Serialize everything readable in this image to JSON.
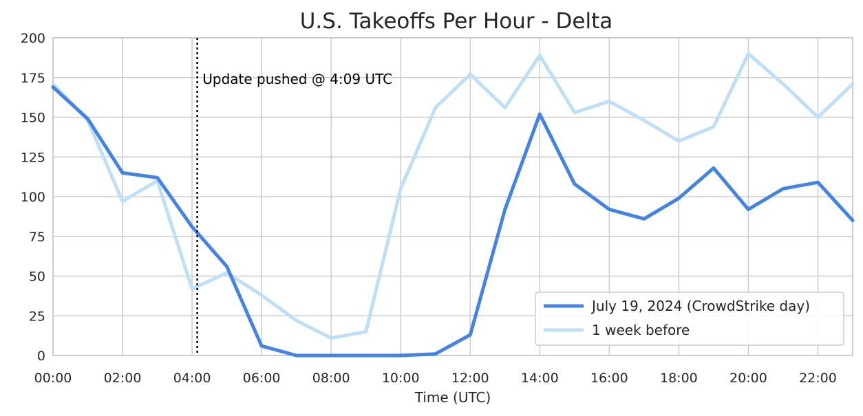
{
  "chart_data": {
    "type": "line",
    "title": "U.S. Takeoffs Per Hour - Delta",
    "xlabel": "Time (UTC)",
    "ylabel": "",
    "x": [
      0,
      1,
      2,
      3,
      4,
      5,
      6,
      7,
      8,
      9,
      10,
      11,
      12,
      13,
      14,
      15,
      16,
      17,
      18,
      19,
      20,
      21,
      22,
      23
    ],
    "xlim": [
      0,
      23
    ],
    "ylim": [
      0,
      200
    ],
    "x_ticks": [
      {
        "value": 0,
        "label": "00:00"
      },
      {
        "value": 2,
        "label": "02:00"
      },
      {
        "value": 4,
        "label": "04:00"
      },
      {
        "value": 6,
        "label": "06:00"
      },
      {
        "value": 8,
        "label": "08:00"
      },
      {
        "value": 10,
        "label": "10:00"
      },
      {
        "value": 12,
        "label": "12:00"
      },
      {
        "value": 14,
        "label": "14:00"
      },
      {
        "value": 16,
        "label": "16:00"
      },
      {
        "value": 18,
        "label": "18:00"
      },
      {
        "value": 20,
        "label": "20:00"
      },
      {
        "value": 22,
        "label": "22:00"
      }
    ],
    "y_ticks": [
      {
        "value": 0,
        "label": "0"
      },
      {
        "value": 25,
        "label": "25"
      },
      {
        "value": 50,
        "label": "50"
      },
      {
        "value": 75,
        "label": "75"
      },
      {
        "value": 100,
        "label": "100"
      },
      {
        "value": 125,
        "label": "125"
      },
      {
        "value": 150,
        "label": "150"
      },
      {
        "value": 175,
        "label": "175"
      },
      {
        "value": 200,
        "label": "200"
      }
    ],
    "grid": true,
    "legend_position": "bottom-right",
    "series": [
      {
        "name": "1 week before",
        "color": "#bfdff7",
        "values": [
          171,
          148,
          97,
          110,
          42,
          52,
          38,
          22,
          11,
          15,
          105,
          156,
          177,
          156,
          189,
          153,
          160,
          148,
          135,
          144,
          190,
          171,
          150,
          171
        ]
      },
      {
        "name": "July 19, 2024 (CrowdStrike day)",
        "color": "#4483e6",
        "values": [
          169,
          149,
          115,
          112,
          81,
          56,
          6,
          0,
          0,
          0,
          0,
          1,
          13,
          92,
          152,
          108,
          92,
          86,
          99,
          118,
          92,
          105,
          109,
          85
        ]
      }
    ],
    "legend_order": [
      1,
      0
    ],
    "annotations": [
      {
        "type": "vline",
        "x": 4.15,
        "style": "dotted",
        "color": "#000000"
      },
      {
        "type": "text",
        "x": 4.3,
        "y": 174,
        "text": "Update pushed @ 4:09 UTC"
      }
    ]
  }
}
